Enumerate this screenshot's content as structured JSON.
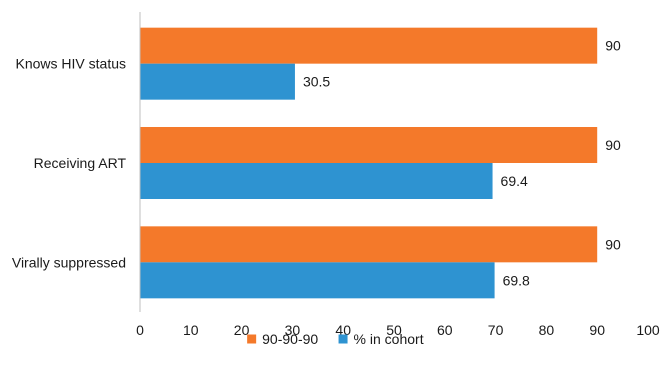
{
  "chart_data": {
    "type": "bar",
    "orientation": "horizontal",
    "categories": [
      "Knows HIV status",
      "Receiving ART",
      "Virally suppressed"
    ],
    "series": [
      {
        "name": "90-90-90",
        "values": [
          90,
          90,
          90
        ],
        "color": "#F4792A"
      },
      {
        "name": "% in cohort",
        "values": [
          30.5,
          69.4,
          69.8
        ],
        "color": "#2E93D1"
      }
    ],
    "xlim": [
      0,
      100
    ],
    "xticks": [
      0,
      10,
      20,
      30,
      40,
      50,
      60,
      70,
      80,
      90,
      100
    ],
    "title": "",
    "xlabel": "",
    "ylabel": "",
    "grid": false,
    "data_labels": true,
    "legend_position": "bottom"
  }
}
